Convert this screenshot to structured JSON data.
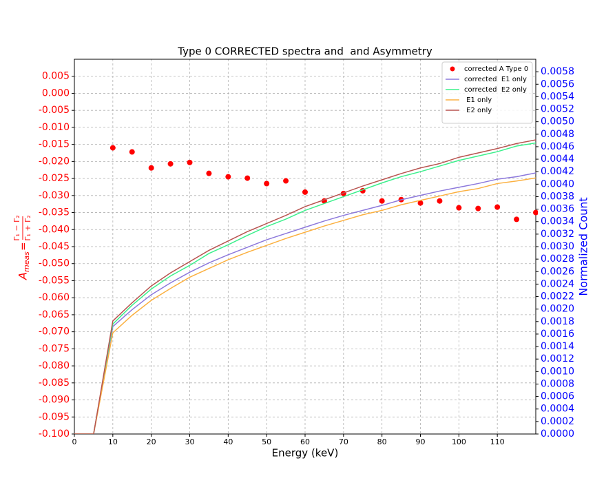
{
  "chart_data": {
    "type": "line",
    "title": "Type 0 CORRECTED spectra and  and Asymmetry",
    "xlabel": "Energy (keV)",
    "ylabel": {
      "symbol": "A",
      "subscript": "meas",
      "equals": "=",
      "numerator": "Γ₁ − Γ₂",
      "denominator": "Γ₁ + Γ₂"
    },
    "y2label": "Normalized Count",
    "ylabel_color": "#ff0000",
    "y2label_color": "#0000ff",
    "grid": true,
    "legend": "upper right",
    "xlim": [
      0,
      120
    ],
    "xticks": [
      0,
      10,
      20,
      30,
      40,
      50,
      60,
      70,
      80,
      90,
      100,
      110
    ],
    "ylim": [
      -0.1,
      0.01
    ],
    "yticks": [
      0.005,
      {
        "value": 0,
        "label": "0.000"
      },
      -0.005,
      {
        "value": -0.01,
        "label": "-0.010"
      },
      -0.015,
      {
        "value": -0.02,
        "label": "-0.020"
      },
      -0.025,
      {
        "value": -0.03,
        "label": "-0.030"
      },
      -0.035,
      {
        "value": -0.04,
        "label": "-0.040"
      },
      -0.045,
      {
        "value": -0.05,
        "label": "-0.050"
      },
      -0.055,
      {
        "value": -0.06,
        "label": "-0.060"
      },
      -0.065,
      {
        "value": -0.07,
        "label": "-0.070"
      },
      -0.075,
      {
        "value": -0.08,
        "label": "-0.080"
      },
      -0.085,
      {
        "value": -0.09,
        "label": "-0.090"
      },
      -0.095,
      {
        "value": -0.1,
        "label": "-0.100"
      }
    ],
    "y2lim": [
      0,
      0.006
    ],
    "y2ticks": [
      {
        "value": 0,
        "label": "0.0000"
      },
      0.0002,
      0.0004,
      0.0006,
      0.0008,
      {
        "value": 0.001,
        "label": "0.0010"
      },
      0.0012,
      0.0014,
      0.0016,
      0.0018,
      {
        "value": 0.002,
        "label": "0.0020"
      },
      0.0022,
      0.0024,
      0.0026,
      0.0028,
      {
        "value": 0.003,
        "label": "0.0030"
      },
      0.0032,
      0.0034,
      0.0036,
      0.0038,
      {
        "value": 0.004,
        "label": "0.0040"
      },
      0.0042,
      0.0044,
      0.0046,
      0.0048,
      {
        "value": 0.005,
        "label": "0.0050"
      },
      0.0052,
      0.0054,
      0.0056,
      0.0058
    ],
    "series": [
      {
        "name": "corrected A Type 0",
        "type": "scatter",
        "color": "#ff0000",
        "axis": "y",
        "x": [
          10,
          15,
          20,
          25,
          30,
          35,
          40,
          45,
          50,
          55,
          60,
          65,
          70,
          75,
          80,
          85,
          90,
          95,
          100,
          105,
          110,
          115,
          120
        ],
        "values": [
          -0.016,
          -0.0172,
          -0.0219,
          -0.0207,
          -0.0203,
          -0.0235,
          -0.0245,
          -0.0249,
          -0.0265,
          -0.0257,
          -0.029,
          -0.0316,
          -0.0294,
          -0.0286,
          -0.0316,
          -0.0312,
          -0.0322,
          -0.0316,
          -0.0336,
          -0.0338,
          -0.0334,
          -0.037,
          -0.035
        ]
      },
      {
        "name": "corrected  E1 only",
        "type": "line",
        "color": "#8c78dc",
        "axis": "y2",
        "x": [
          0,
          5,
          10,
          15,
          20,
          25,
          30,
          35,
          40,
          45,
          50,
          55,
          60,
          65,
          70,
          75,
          80,
          85,
          90,
          95,
          100,
          105,
          110,
          115,
          120
        ],
        "values": [
          0,
          0,
          0.00172,
          0.00199,
          0.00223,
          0.00242,
          0.00259,
          0.00274,
          0.00287,
          0.00299,
          0.00311,
          0.00321,
          0.00331,
          0.00341,
          0.0035,
          0.00358,
          0.00366,
          0.00375,
          0.00382,
          0.00389,
          0.00395,
          0.00401,
          0.00408,
          0.00412,
          0.00418
        ]
      },
      {
        "name": "corrected  E2 only",
        "type": "line",
        "color": "#3cf08c",
        "axis": "y2",
        "x": [
          0,
          5,
          10,
          15,
          20,
          25,
          30,
          35,
          40,
          45,
          50,
          55,
          60,
          65,
          70,
          75,
          80,
          85,
          90,
          95,
          100,
          105,
          110,
          115,
          120
        ],
        "values": [
          0,
          0,
          0.00176,
          0.00206,
          0.00232,
          0.00253,
          0.0027,
          0.00289,
          0.00303,
          0.00318,
          0.00332,
          0.00344,
          0.00358,
          0.00369,
          0.0038,
          0.00391,
          0.00402,
          0.00412,
          0.0042,
          0.00429,
          0.00438,
          0.00445,
          0.00452,
          0.00461,
          0.00466
        ]
      },
      {
        "name": " E1 only",
        "type": "line",
        "color": "#fbb040",
        "axis": "y2",
        "x": [
          0,
          5,
          10,
          15,
          20,
          25,
          30,
          35,
          40,
          45,
          50,
          55,
          60,
          65,
          70,
          75,
          80,
          85,
          90,
          95,
          100,
          105,
          110,
          115,
          120
        ],
        "values": [
          0,
          0,
          0.00162,
          0.0019,
          0.00214,
          0.00233,
          0.00251,
          0.00265,
          0.00279,
          0.00291,
          0.00302,
          0.00313,
          0.00323,
          0.00333,
          0.00342,
          0.00351,
          0.00358,
          0.00367,
          0.00374,
          0.00381,
          0.00388,
          0.00393,
          0.00401,
          0.00405,
          0.0041
        ]
      },
      {
        "name": " E2 only",
        "type": "line",
        "color": "#b85450",
        "axis": "y2",
        "x": [
          0,
          5,
          10,
          15,
          20,
          25,
          30,
          35,
          40,
          45,
          50,
          55,
          60,
          65,
          70,
          75,
          80,
          85,
          90,
          95,
          100,
          105,
          110,
          115,
          120
        ],
        "values": [
          0,
          0,
          0.00181,
          0.0021,
          0.00237,
          0.00258,
          0.00276,
          0.00294,
          0.00309,
          0.00324,
          0.00337,
          0.0035,
          0.00364,
          0.00375,
          0.00386,
          0.00397,
          0.00407,
          0.00417,
          0.00426,
          0.00433,
          0.00443,
          0.0045,
          0.00457,
          0.00465,
          0.00471
        ]
      }
    ]
  }
}
